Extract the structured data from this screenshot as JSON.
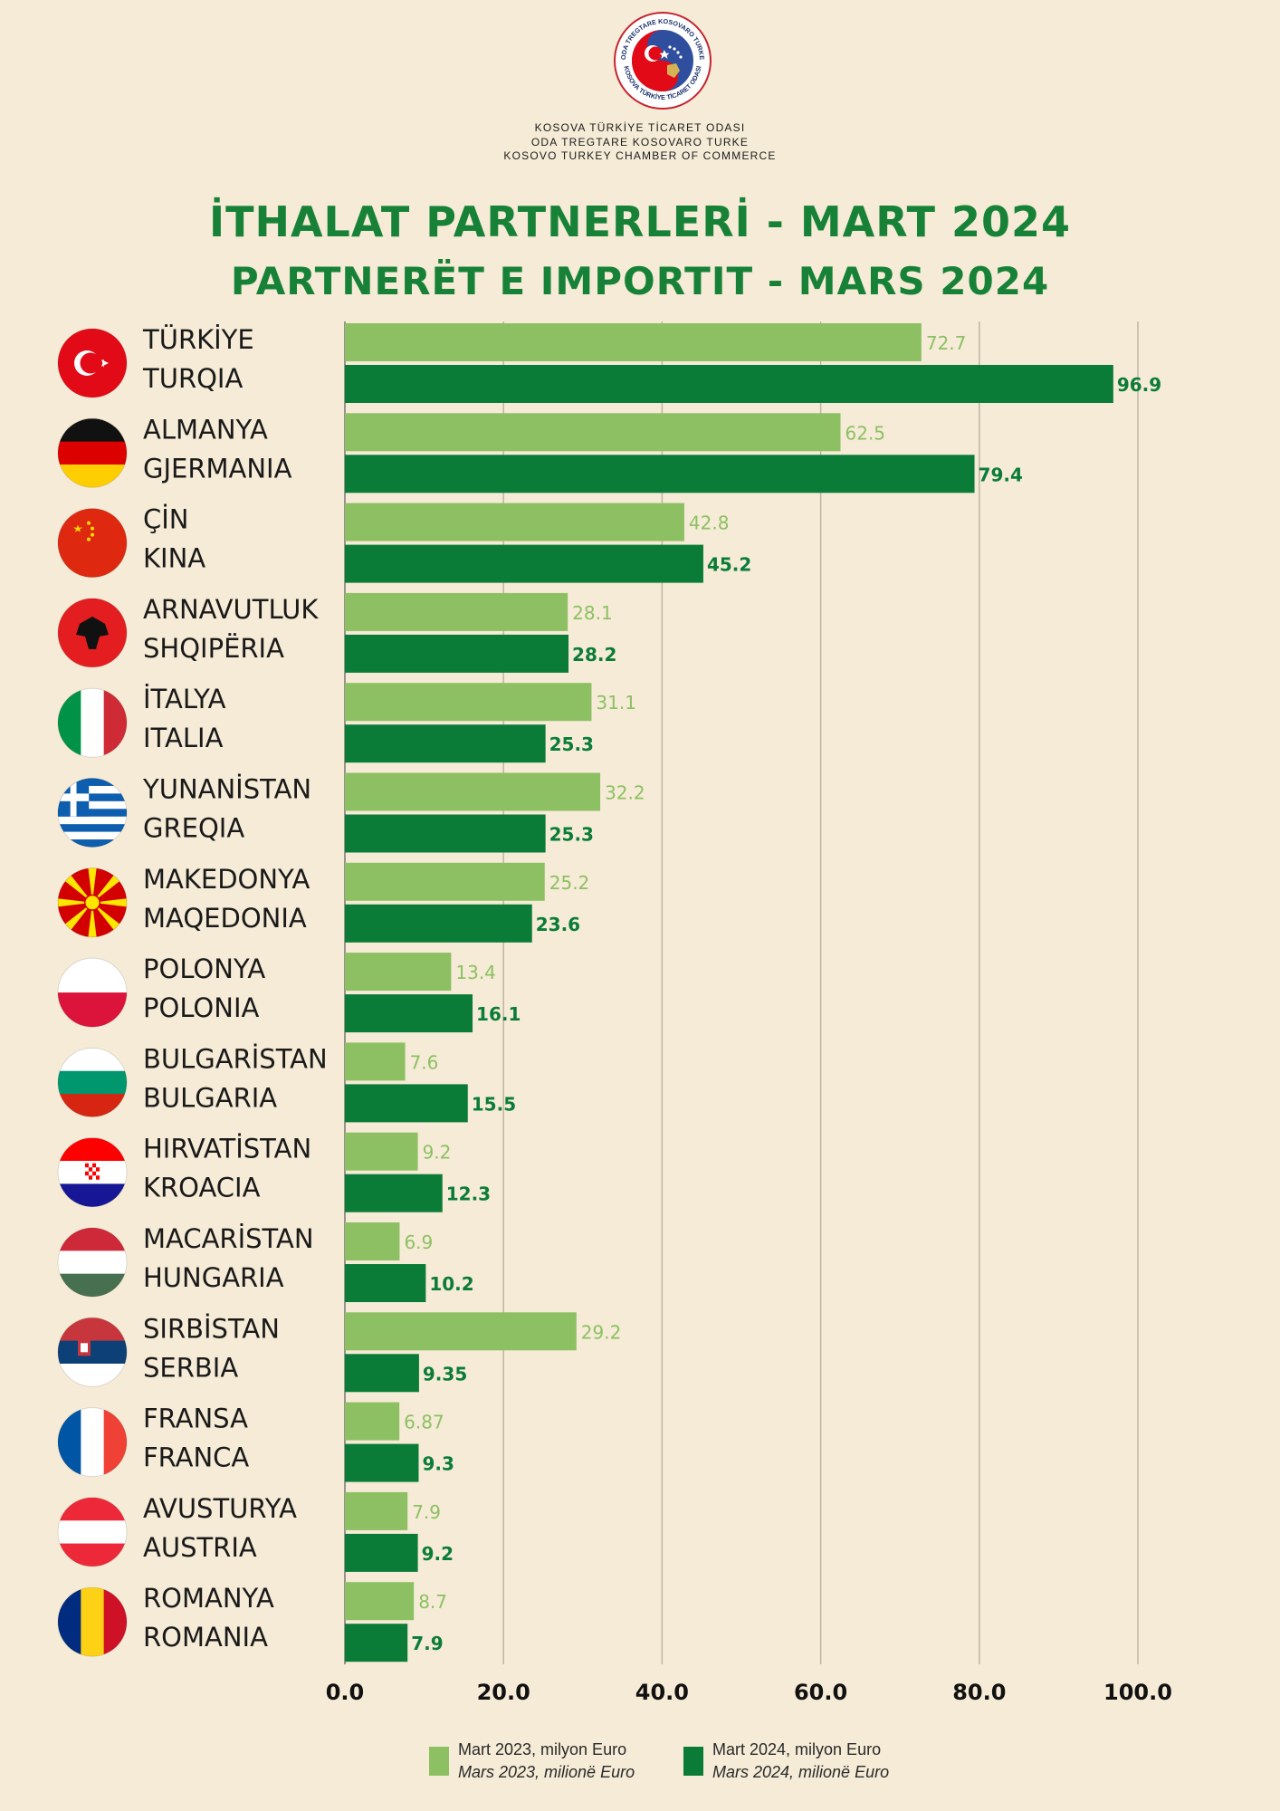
{
  "header": {
    "org_lines": [
      "KOSOVA TÜRKİYE TİCARET ODASI",
      "ODA TREGTARE KOSOVARO TURKE",
      "KOSOVO TURKEY CHAMBER OF COMMERCE"
    ],
    "logo_text_top": "ODA TREGTARE KOSOVARO TURKE",
    "logo_text_bottom": "KOSOVA TÜRKİYE TİCARET ODASI",
    "title_tr": "İTHALAT PARTNERLERİ - MART 2024",
    "title_sq": "PARTNERËT E IMPORTIT - MARS 2024"
  },
  "colors": {
    "background": "#f5ebd6",
    "title": "#178237",
    "series_2023": "#8dc063",
    "series_2024": "#0b7c38",
    "gridline": "#bfb6a3"
  },
  "legend": [
    {
      "line1": "Mart 2023, milyon Euro",
      "line2": "Mars 2023, milionë Euro",
      "color": "#8dc063"
    },
    {
      "line1": "Mart 2024, milyon Euro",
      "line2": "Mars 2024, milionë Euro",
      "color": "#0b7c38"
    }
  ],
  "chart_data": {
    "type": "bar",
    "orientation": "horizontal",
    "categories": [
      {
        "tr": "TÜRKİYE",
        "sq": "TURQIA",
        "flag": "turkey-flag-icon"
      },
      {
        "tr": "ALMANYA",
        "sq": "GJERMANIA",
        "flag": "germany-flag-icon"
      },
      {
        "tr": "ÇİN",
        "sq": "KINA",
        "flag": "china-flag-icon"
      },
      {
        "tr": "ARNAVUTLUK",
        "sq": "SHQIPËRIA",
        "flag": "albania-flag-icon"
      },
      {
        "tr": "İTALYA",
        "sq": "ITALIA",
        "flag": "italy-flag-icon"
      },
      {
        "tr": "YUNANİSTAN",
        "sq": "GREQIA",
        "flag": "greece-flag-icon"
      },
      {
        "tr": "MAKEDONYA",
        "sq": "MAQEDONIA",
        "flag": "north-macedonia-flag-icon"
      },
      {
        "tr": "POLONYA",
        "sq": "POLONIA",
        "flag": "poland-flag-icon"
      },
      {
        "tr": "BULGARİSTAN",
        "sq": "BULGARIA",
        "flag": "bulgaria-flag-icon"
      },
      {
        "tr": "HIRVATİSTAN",
        "sq": "KROACIA",
        "flag": "croatia-flag-icon"
      },
      {
        "tr": "MACARİSTAN",
        "sq": "HUNGARIA",
        "flag": "hungary-flag-icon"
      },
      {
        "tr": "SIRBİSTAN",
        "sq": "SERBIA",
        "flag": "serbia-flag-icon"
      },
      {
        "tr": "FRANSA",
        "sq": "FRANCA",
        "flag": "france-flag-icon"
      },
      {
        "tr": "AVUSTURYA",
        "sq": "AUSTRIA",
        "flag": "austria-flag-icon"
      },
      {
        "tr": "ROMANYA",
        "sq": "ROMANIA",
        "flag": "romania-flag-icon"
      }
    ],
    "series": [
      {
        "name": "Mart 2023, milyon Euro / Mars 2023, milionë Euro",
        "values": [
          72.7,
          62.5,
          42.8,
          28.1,
          31.1,
          32.2,
          25.2,
          13.4,
          7.6,
          9.2,
          6.9,
          29.2,
          6.87,
          7.9,
          8.7
        ],
        "labels": [
          "72.7",
          "62.5",
          "42.8",
          "28.1",
          "31.1",
          "32.2",
          "25.2",
          "13.4",
          "7.6",
          "9.2",
          "6.9",
          "29.2",
          "6.87",
          "7.9",
          "8.7"
        ]
      },
      {
        "name": "Mart 2024, milyon Euro / Mars 2024, milionë Euro",
        "values": [
          96.9,
          79.4,
          45.2,
          28.2,
          25.3,
          25.3,
          23.6,
          16.1,
          15.5,
          12.3,
          10.2,
          9.35,
          9.3,
          9.2,
          7.9
        ],
        "labels": [
          "96.9",
          "79.4",
          "45.2",
          "28.2",
          "25.3",
          "25.3",
          "23.6",
          "16.1",
          "15.5",
          "12.3",
          "10.2",
          "9.35",
          "9.3",
          "9.2",
          "7.9"
        ]
      }
    ],
    "xlim": [
      0,
      100
    ],
    "xticks": [
      "0.0",
      "20.0",
      "40.0",
      "60.0",
      "80.0",
      "100.0"
    ],
    "grid": true,
    "legend_position": "bottom-center"
  }
}
